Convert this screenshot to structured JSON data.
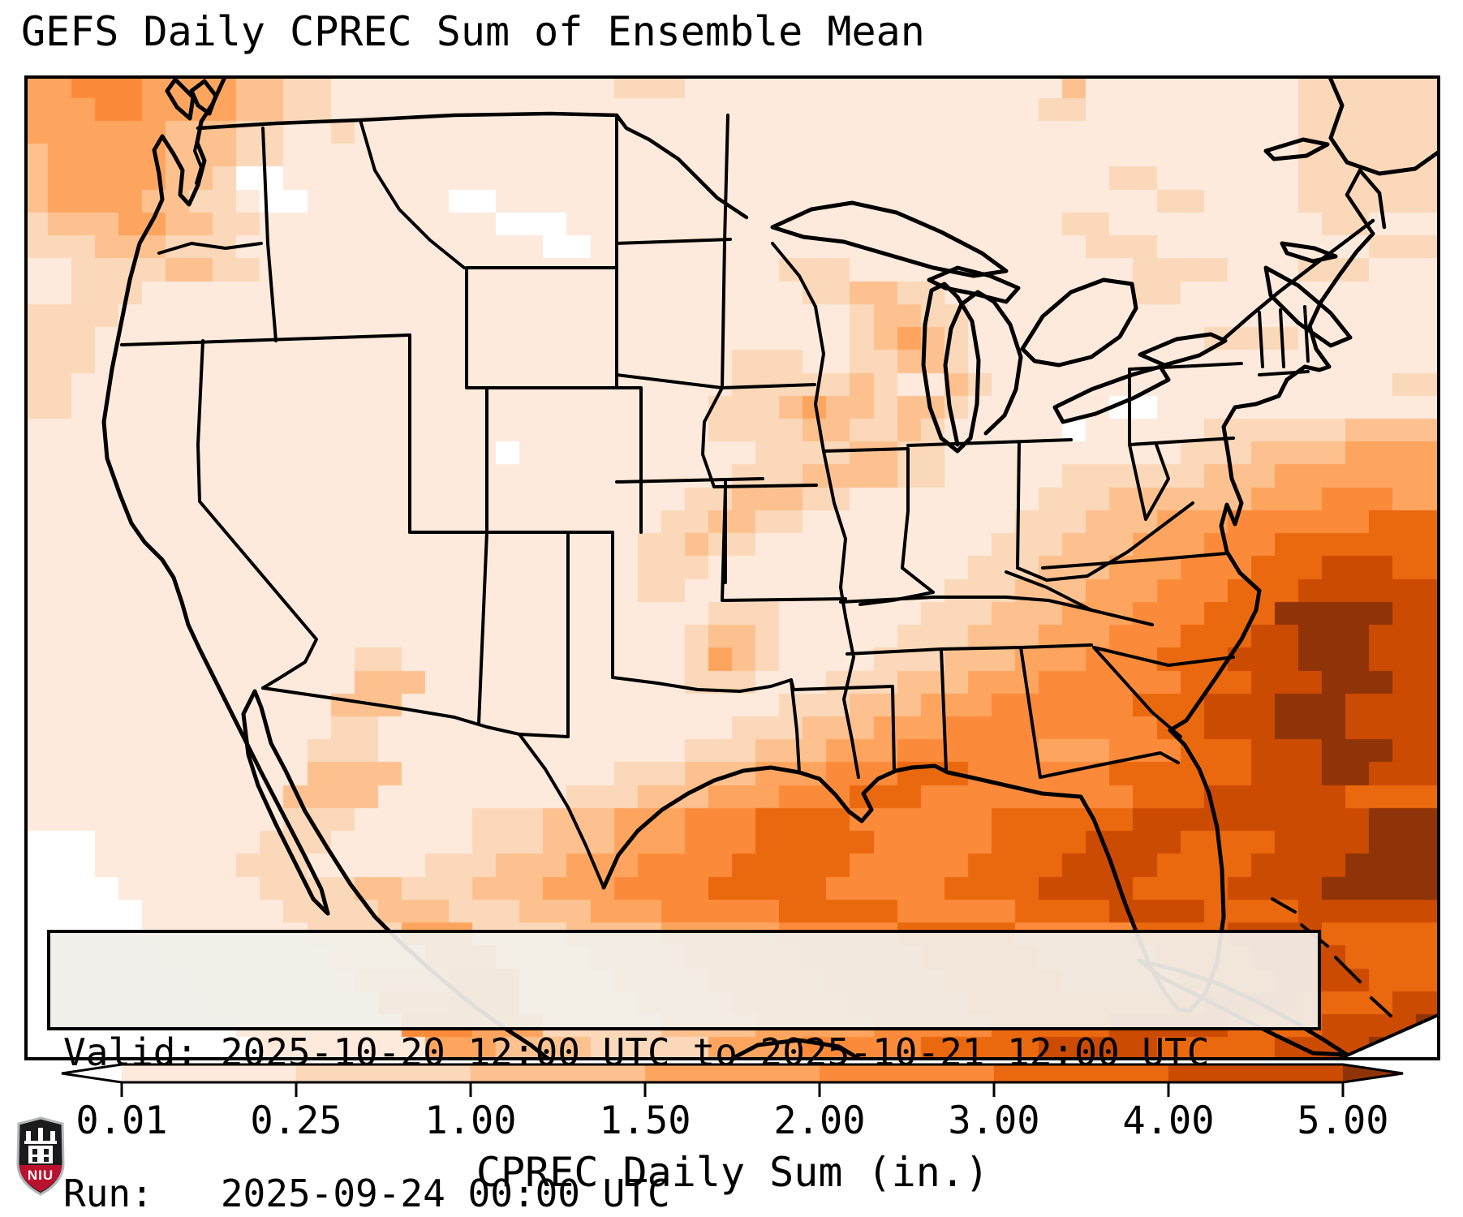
{
  "title": "GEFS Daily CPREC Sum of Ensemble Mean",
  "info_box": {
    "line1": "Valid: 2025-10-20 12:00 UTC to 2025-10-21 12:00 UTC",
    "line2": "Run:   2025-09-24 00:00 UTC"
  },
  "colorbar": {
    "label": "CPREC Daily Sum (in.)",
    "ticks": [
      "0.01",
      "0.25",
      "1.00",
      "1.50",
      "2.00",
      "3.00",
      "4.00",
      "5.00"
    ],
    "tick_values": [
      0.01,
      0.25,
      1.0,
      1.5,
      2.0,
      3.0,
      4.0,
      5.0
    ],
    "units": "in.",
    "extend": "both"
  },
  "palette": {
    "below": "#ffffff",
    "bins": [
      "#fdeadc",
      "#fbd8b9",
      "#fdc190",
      "#fda55e",
      "#fb8b3b",
      "#eb690e",
      "#cc4b02"
    ],
    "above": "#8f3408",
    "outline_color": "#000000",
    "infobox_bg": "#f2efe9"
  },
  "map_grid": {
    "cols": 60,
    "rows": 43,
    "legend": "each token level*count; level 0=below 0.01in, 1..7=color bins, 8=above 5.00in",
    "rle_rows": [
      "4*2 5*3 4*4 3*2 2*2 1*12 2*3 1*16 3 1*9 2*6",
      "4*3 5*2 4*4 3*2 2*2 1*30 2*2 1*9 2*6",
      "4*6 3*3 2*2 1*2 2 1*40 2*6",
      "3 4*5 3*3 2*2 1*43 2*6",
      "3 4*5 3*2 2 0*2 1*35 2*2 1*6 2*6",
      "3 4*4 3*2 2*2 1 0*2 1*6 0*2 1*28 2*2 1*4 2*6",
      "2 3*3 4*2 3*2 2*2 1*10 0*3 1*21 2*2 1*9 2*2 1*3",
      "2*3 3*3 2*3 1*13 0*2 1*21 2*3 1*9 2*3",
      "1*2 2*4 3*2 2*2 1*22 2*3 1*12 2*4 1*3 2*3 1*3",
      "1*2 2*3 1*28 2*2 3*2 2*2 1*8 2*2 1*11",
      "2*4 1*31 2 3*2 2*2 1*20",
      "2*3 1*32 2 3 4 3 2 1*10 2*4 1*6",
      "2*3 1*27 2*3 1*2 2*2 3*2 2 1*20",
      "2*2 1*28 2*5 3 2 1*2 3 2 1*17 2*2",
      "2*2 1*27 2*3 3 4 3 3 2 3*2 2 1*6 0*2 1*12",
      "1*29 2*4 3*2 2*2 3 2 1*5 0 1*5 2*6 3*4",
      "1*20 0 1*10 2*4 3*2 2*2 1*10 2*3 3*4 4*4",
      "1*30 2*3 3*4 2*2 1*5 2*6 3*3 4*7",
      "1*28 2*2 3*3 2*2 1*8 2*3 3*6 4*3 5*3 4*2",
      "1*27 2*2 3*2 2*2 1*9 2*3 3*3 4*3 5*6 6*3",
      "1*26 2*2 3 2*2 1*10 2*3 3*3 4*3 5*3 6*7",
      "1*26 2*3 1*11 2*3 3*3 4*3 5*3 6*3 7*3 6*2",
      "1*26 2*2 1*11 2*3 3*3 4*3 5*3 6*3 7*6",
      "1*29 2*3 1*6 2*3 3*3 4*3 5*3 6*3 8*5 7*2",
      "1*28 2 3*2 2 1*5 2*3 3*3 4*3 5*3 6*3 7*2 8*3 7*3",
      "1*14 2*2 1*12 2 4 3 2 1*4 2*3 3*3 4*3 5*3 6*3 7*3 8*3 7*3",
      "1*14 3*3 1*11 2*3 1*3 2*3 3*3 4*3 5*6 6*3 7*3 8*3 7*2",
      "1*13 3*3 1*16 2*3 3*3 4*3 5*6 6*3 7*3 8*3 7*4",
      "1*13 2*2 1*15 2*3 3*3 4*3 5*9 6*2 7*3 8*3 7*4",
      "1*12 2*3 1*13 2*3 3*3 4*3 5*6 4*3 5*3 6*3 7*3 8*3 7*2",
      "1*12 3*4 1*9 2*3 3*3 4*3 5*3 6*3 5*6 6*6 7*3 8*2 7*3",
      "1*11 3*4 1*8 2*3 3*3 4*3 5*3 6*3 5*9 6*3 7*6 6*4",
      "1*11 2*3 1*5 2*3 3*3 4*3 5*3 6*4 5*6 6*6 7*10 8*3",
      "0*3 1*7 2*3 1*6 2*3 3*3 4*3 5*3 6*5 5*5 6*4 7*4 6*4 7*4 8*3",
      "0*3 1*6 2*3 1*5 2*3 3*3 4*3 5*4 6*5 5*5 6*4 7*4 6*4 7*4 8*4",
      "0*4 1*6 2*4 3*2 2*3 3*3 4*3 5*4 6*5 5*5 6*4 7*4 6*4 7*4 8*5",
      "0*5 1*6 2*4 3*3 2*3 3*3 4*3 5*5 6*5 5*5 6*4 7*4 6*4 7*6",
      "0*5 1*7 2*4 4*3 2*4 3*4 4*5 5*5 6*5 5*5 6*4 7*4 6*5",
      "0*6 1*7 2*4 4*3 2*4 3*4 4*5 5*5 6*5 5*5 6*4 7*4 6*4",
      "0*7 1*7 3*4 5*3 2*4 3*4 4*5 5*5 6*5 5*5 6*4 7*4 6*3",
      "0*8 1*7 4*3 5*3 2*5 3*4 4*5 5*5 6*10 7*4 6*4 7*2",
      "0*9 1*7 5*3 4*3 2*5 3*4 4*5 5*5 6*5 7*5 6*4 7*4 8",
      "0*10 1*7 4*3 3*4 2*5 4*4 5*5 6*5 7*5 6*5 7*4 8*3"
    ]
  },
  "logo": {
    "label": "NIU",
    "red": "#ba122e",
    "black": "#1b1b1b",
    "silver": "#b3b7bb"
  }
}
